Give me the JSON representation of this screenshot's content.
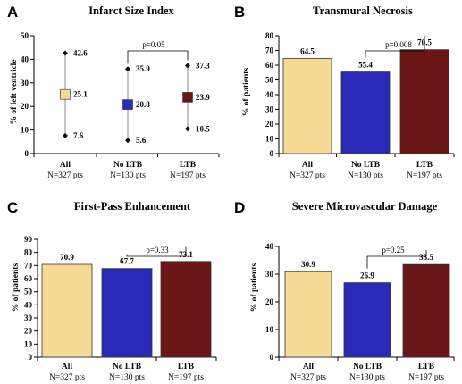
{
  "chart_data": [
    {
      "panel": "A",
      "type": "scatter",
      "title": "Infarct Size Index",
      "ylabel": "% of left ventricle",
      "ylim": [
        0,
        50
      ],
      "yticks": [
        0,
        10,
        20,
        30,
        40,
        50
      ],
      "categories": [
        "All",
        "No LTB",
        "LTB"
      ],
      "sublabels": [
        "N=327 pts",
        "N=130 pts",
        "N=197 pts"
      ],
      "values": [
        25.1,
        20.8,
        23.9
      ],
      "low": [
        7.6,
        5.6,
        10.5
      ],
      "high": [
        42.6,
        35.9,
        37.3
      ],
      "high_labels": [
        "42.6",
        "35.9",
        "37.3"
      ],
      "low_labels": [
        "7.6",
        "5.6",
        "10.5"
      ],
      "value_labels": [
        "25.1",
        "20.8",
        "23.9"
      ],
      "colors": [
        "#f5d995",
        "#2a2ab8",
        "#6b1616"
      ],
      "comparison": "p=0.05"
    },
    {
      "panel": "B",
      "type": "bar",
      "title": "Transmural Necrosis",
      "ylabel": "% of patients",
      "ylim": [
        0,
        80
      ],
      "yticks": [
        0,
        10,
        20,
        30,
        40,
        50,
        60,
        70,
        80
      ],
      "categories": [
        "All",
        "No LTB",
        "LTB"
      ],
      "sublabels": [
        "N=327 pts",
        "N=130 pts",
        "N=197 pts"
      ],
      "values": [
        64.5,
        55.4,
        70.5
      ],
      "value_labels": [
        "64.5",
        "55.4",
        "70.5"
      ],
      "colors": [
        "#f5d995",
        "#2a2ab8",
        "#6b1616"
      ],
      "comparison": "p=0.008"
    },
    {
      "panel": "C",
      "type": "bar",
      "title": "First-Pass Enhancement",
      "ylabel": "% of patients",
      "ylim": [
        0,
        90
      ],
      "yticks": [
        0,
        10,
        20,
        30,
        40,
        50,
        60,
        70,
        80,
        90
      ],
      "categories": [
        "All",
        "No LTB",
        "LTB"
      ],
      "sublabels": [
        "N=327 pts",
        "N=130 pts",
        "N=197 pts"
      ],
      "values": [
        70.9,
        67.7,
        73.1
      ],
      "value_labels": [
        "70.9",
        "67.7",
        "73.1"
      ],
      "colors": [
        "#f5d995",
        "#2a2ab8",
        "#6b1616"
      ],
      "comparison": "p=0.33"
    },
    {
      "panel": "D",
      "type": "bar",
      "title": "Severe Microvascular Damage",
      "ylabel": "% of patients",
      "ylim": [
        0,
        40
      ],
      "yticks": [
        0,
        10,
        20,
        30,
        40
      ],
      "categories": [
        "All",
        "No LTB",
        "LTB"
      ],
      "sublabels": [
        "N=327 pts",
        "N=130 pts",
        "N=197 pts"
      ],
      "values": [
        30.9,
        26.9,
        33.5
      ],
      "value_labels": [
        "30.9",
        "26.9",
        "33.5"
      ],
      "colors": [
        "#f5d995",
        "#2a2ab8",
        "#6b1616"
      ],
      "comparison": "p=0.25"
    }
  ]
}
